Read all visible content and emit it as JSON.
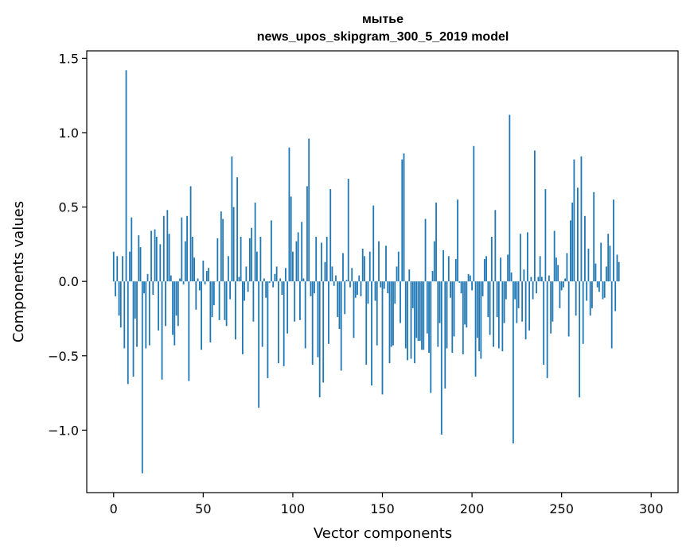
{
  "chart_data": {
    "type": "bar",
    "title": "мытье",
    "subtitle": "news_upos_skipgram_300_5_2019 model",
    "xlabel": "Vector components",
    "ylabel": "Components values",
    "xlim": [
      -15,
      315
    ],
    "ylim": [
      -1.42,
      1.55
    ],
    "x_ticks": [
      0,
      50,
      100,
      150,
      200,
      250,
      300
    ],
    "x_tick_labels": [
      "0",
      "50",
      "100",
      "150",
      "200",
      "250",
      "300"
    ],
    "y_ticks": [
      -1.0,
      -0.5,
      0.0,
      0.5,
      1.0,
      1.5
    ],
    "y_tick_labels": [
      "−1.0",
      "−0.5",
      "0.0",
      "0.5",
      "1.0",
      "1.5"
    ],
    "bar_color": "#1f77b4",
    "grid": false,
    "series": [
      {
        "values": [
          0.2,
          -0.1,
          0.17,
          -0.23,
          -0.31,
          0.17,
          -0.45,
          1.42,
          -0.69,
          0.2,
          0.43,
          -0.64,
          -0.25,
          -0.44,
          0.31,
          0.23,
          -1.29,
          -0.08,
          -0.45,
          0.05,
          -0.43,
          0.34,
          -0.09,
          0.35,
          0.3,
          -0.33,
          0.25,
          -0.66,
          0.44,
          -0.3,
          0.48,
          0.32,
          0.04,
          -0.36,
          -0.43,
          -0.23,
          -0.3,
          0.02,
          0.43,
          -0.02,
          0.27,
          0.44,
          -0.67,
          0.64,
          0.3,
          0.16,
          -0.19,
          0.02,
          -0.06,
          -0.46,
          0.14,
          -0.02,
          0.07,
          0.09,
          -0.41,
          -0.24,
          -0.16,
          0.0,
          0.29,
          -0.26,
          0.47,
          0.42,
          -0.26,
          -0.3,
          0.17,
          -0.12,
          0.84,
          0.5,
          -0.39,
          0.7,
          0.03,
          0.3,
          -0.49,
          -0.13,
          0.1,
          -0.07,
          0.29,
          0.36,
          -0.27,
          0.53,
          0.2,
          -0.85,
          0.3,
          -0.44,
          0.02,
          -0.11,
          -0.65,
          -0.01,
          0.41,
          -0.04,
          0.05,
          0.1,
          -0.55,
          0.02,
          -0.09,
          -0.57,
          0.09,
          -0.35,
          0.9,
          0.57,
          0.2,
          -0.27,
          0.27,
          0.33,
          -0.26,
          0.4,
          0.02,
          -0.45,
          0.64,
          0.96,
          -0.1,
          -0.56,
          -0.08,
          0.3,
          -0.51,
          -0.78,
          0.26,
          -0.68,
          0.13,
          0.3,
          -0.42,
          0.62,
          0.1,
          -0.03,
          0.04,
          -0.24,
          -0.32,
          -0.6,
          0.19,
          -0.22,
          0.01,
          0.69,
          -0.04,
          0.09,
          -0.38,
          -0.11,
          -0.09,
          0.04,
          -0.1,
          0.22,
          0.17,
          -0.56,
          -0.15,
          0.2,
          -0.7,
          0.51,
          -0.13,
          -0.43,
          0.27,
          -0.04,
          -0.76,
          -0.05,
          0.24,
          -0.08,
          -0.55,
          -0.44,
          -0.43,
          -0.15,
          0.1,
          0.2,
          -0.28,
          0.82,
          0.86,
          -0.45,
          -0.53,
          0.08,
          -0.52,
          -0.18,
          -0.55,
          -0.38,
          -0.4,
          -0.4,
          -0.46,
          -0.46,
          0.42,
          -0.35,
          -0.48,
          -0.75,
          0.07,
          0.27,
          0.53,
          -0.44,
          -0.28,
          -1.03,
          0.21,
          -0.72,
          -0.45,
          0.17,
          -0.11,
          -0.48,
          -0.37,
          0.15,
          0.55,
          -0.01,
          -0.08,
          -0.49,
          -0.29,
          -0.31,
          0.05,
          0.04,
          -0.06,
          0.91,
          -0.64,
          -0.38,
          -0.47,
          -0.52,
          -0.1,
          0.15,
          0.17,
          -0.24,
          -0.36,
          0.3,
          -0.44,
          0.48,
          -0.24,
          -0.45,
          0.16,
          -0.47,
          -0.28,
          -0.12,
          0.18,
          1.12,
          0.06,
          -1.09,
          -0.12,
          -0.28,
          -0.18,
          0.32,
          -0.27,
          0.08,
          -0.39,
          0.33,
          -0.33,
          0.03,
          -0.12,
          0.88,
          -0.08,
          0.03,
          0.17,
          0.03,
          -0.56,
          0.62,
          -0.65,
          0.04,
          -0.35,
          -0.27,
          0.34,
          0.16,
          0.11,
          -0.18,
          -0.06,
          -0.04,
          0.02,
          0.19,
          -0.37,
          0.41,
          0.53,
          0.82,
          -0.23,
          0.63,
          -0.78,
          0.84,
          -0.42,
          0.44,
          -0.13,
          0.22,
          -0.23,
          -0.18,
          0.6,
          0.12,
          -0.04,
          -0.07,
          0.26,
          -0.12,
          -0.11,
          0.1,
          0.32,
          0.24,
          -0.45,
          0.55,
          -0.2,
          0.18,
          0.13
        ]
      }
    ]
  }
}
